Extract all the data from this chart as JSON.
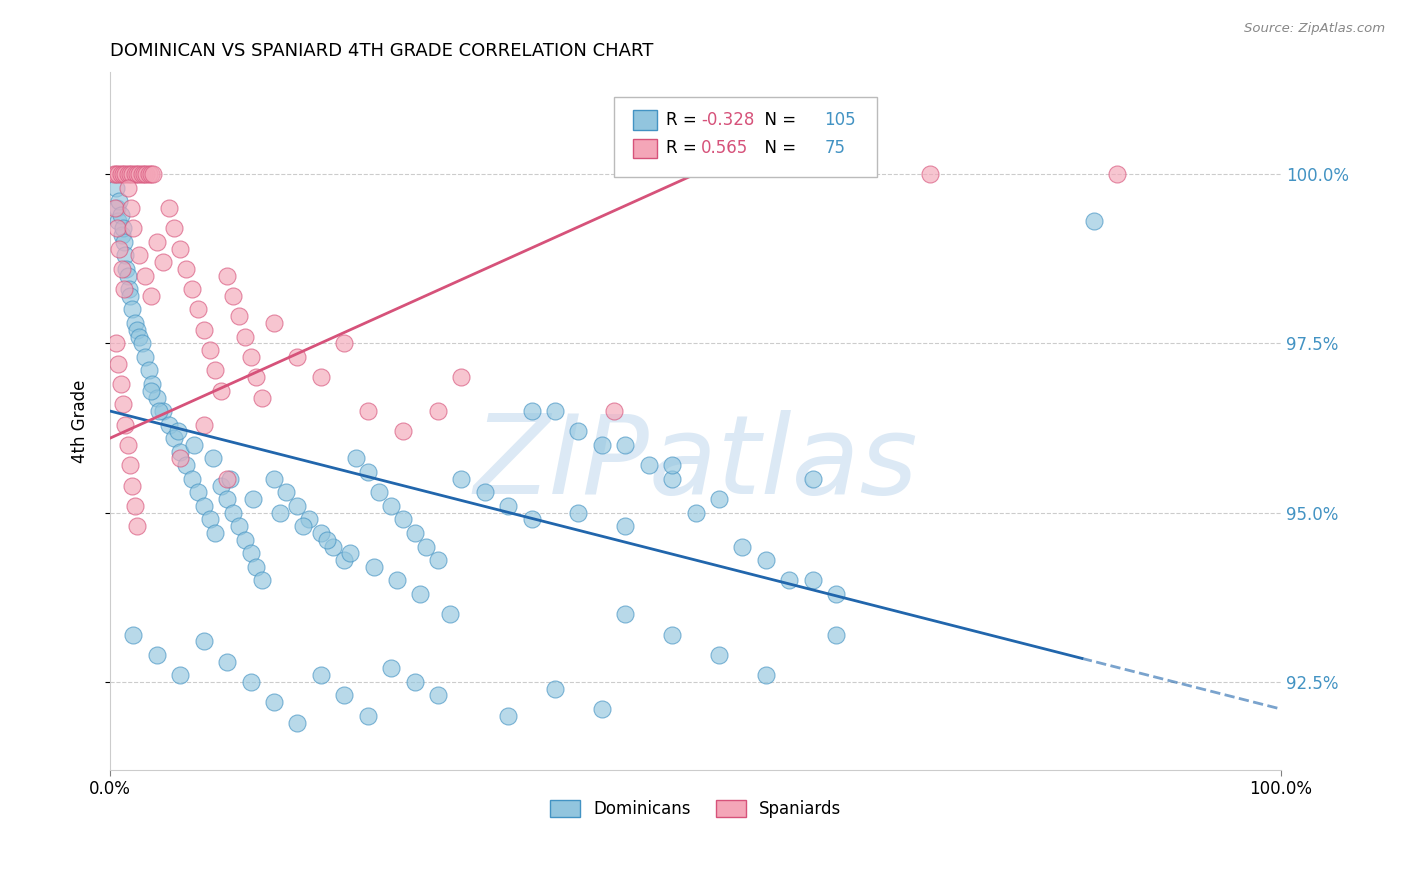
{
  "title": "DOMINICAN VS SPANIARD 4TH GRADE CORRELATION CHART",
  "source": "Source: ZipAtlas.com",
  "ylabel": "4th Grade",
  "xlim": [
    0,
    100
  ],
  "ylim": [
    91.2,
    101.5
  ],
  "yticks": [
    92.5,
    95.0,
    97.5,
    100.0
  ],
  "yticklabels": [
    "92.5%",
    "95.0%",
    "97.5%",
    "100.0%"
  ],
  "xticks": [
    0,
    100
  ],
  "xticklabels": [
    "0.0%",
    "100.0%"
  ],
  "blue_R": -0.328,
  "blue_N": 105,
  "pink_R": 0.565,
  "pink_N": 75,
  "blue_color": "#92c5de",
  "pink_color": "#f4a6b8",
  "blue_edge_color": "#4393c3",
  "pink_edge_color": "#d6527a",
  "blue_line_color": "#2166ac",
  "pink_line_color": "#d6527a",
  "tick_color": "#4393c3",
  "watermark_color": "#dce9f5",
  "legend_dominicans": "Dominicans",
  "legend_spaniards": "Spaniards",
  "blue_line_x0": 0,
  "blue_line_y0": 96.5,
  "blue_line_x1": 100,
  "blue_line_y1": 92.1,
  "blue_line_solid_end": 83,
  "pink_line_x0": 0,
  "pink_line_y0": 96.1,
  "pink_line_x1": 50,
  "pink_line_y1": 100.0,
  "blue_dots": [
    [
      0.5,
      99.8
    ],
    [
      0.6,
      99.5
    ],
    [
      0.7,
      99.3
    ],
    [
      0.8,
      99.6
    ],
    [
      0.9,
      99.4
    ],
    [
      1.0,
      99.1
    ],
    [
      1.1,
      99.2
    ],
    [
      1.2,
      99.0
    ],
    [
      1.3,
      98.8
    ],
    [
      1.4,
      98.6
    ],
    [
      1.5,
      98.5
    ],
    [
      1.6,
      98.3
    ],
    [
      1.7,
      98.2
    ],
    [
      1.9,
      98.0
    ],
    [
      2.1,
      97.8
    ],
    [
      2.3,
      97.7
    ],
    [
      2.5,
      97.6
    ],
    [
      2.7,
      97.5
    ],
    [
      3.0,
      97.3
    ],
    [
      3.3,
      97.1
    ],
    [
      3.6,
      96.9
    ],
    [
      4.0,
      96.7
    ],
    [
      4.5,
      96.5
    ],
    [
      5.0,
      96.3
    ],
    [
      5.5,
      96.1
    ],
    [
      6.0,
      95.9
    ],
    [
      6.5,
      95.7
    ],
    [
      7.0,
      95.5
    ],
    [
      7.5,
      95.3
    ],
    [
      8.0,
      95.1
    ],
    [
      8.5,
      94.9
    ],
    [
      9.0,
      94.7
    ],
    [
      9.5,
      95.4
    ],
    [
      10.0,
      95.2
    ],
    [
      10.5,
      95.0
    ],
    [
      11.0,
      94.8
    ],
    [
      11.5,
      94.6
    ],
    [
      12.0,
      94.4
    ],
    [
      12.5,
      94.2
    ],
    [
      13.0,
      94.0
    ],
    [
      14.0,
      95.5
    ],
    [
      15.0,
      95.3
    ],
    [
      16.0,
      95.1
    ],
    [
      17.0,
      94.9
    ],
    [
      18.0,
      94.7
    ],
    [
      19.0,
      94.5
    ],
    [
      20.0,
      94.3
    ],
    [
      21.0,
      95.8
    ],
    [
      22.0,
      95.6
    ],
    [
      23.0,
      95.3
    ],
    [
      24.0,
      95.1
    ],
    [
      25.0,
      94.9
    ],
    [
      26.0,
      94.7
    ],
    [
      27.0,
      94.5
    ],
    [
      28.0,
      94.3
    ],
    [
      30.0,
      95.5
    ],
    [
      32.0,
      95.3
    ],
    [
      34.0,
      95.1
    ],
    [
      36.0,
      94.9
    ],
    [
      38.0,
      96.5
    ],
    [
      40.0,
      95.0
    ],
    [
      42.0,
      96.0
    ],
    [
      44.0,
      94.8
    ],
    [
      46.0,
      95.7
    ],
    [
      48.0,
      95.5
    ],
    [
      50.0,
      95.0
    ],
    [
      52.0,
      95.2
    ],
    [
      54.0,
      94.5
    ],
    [
      56.0,
      94.3
    ],
    [
      58.0,
      94.0
    ],
    [
      60.0,
      95.5
    ],
    [
      62.0,
      93.8
    ],
    [
      3.5,
      96.8
    ],
    [
      4.2,
      96.5
    ],
    [
      5.8,
      96.2
    ],
    [
      7.2,
      96.0
    ],
    [
      8.8,
      95.8
    ],
    [
      10.2,
      95.5
    ],
    [
      12.2,
      95.2
    ],
    [
      14.5,
      95.0
    ],
    [
      16.5,
      94.8
    ],
    [
      18.5,
      94.6
    ],
    [
      20.5,
      94.4
    ],
    [
      22.5,
      94.2
    ],
    [
      24.5,
      94.0
    ],
    [
      26.5,
      93.8
    ],
    [
      29.0,
      93.5
    ],
    [
      2.0,
      93.2
    ],
    [
      4.0,
      92.9
    ],
    [
      6.0,
      92.6
    ],
    [
      8.0,
      93.1
    ],
    [
      10.0,
      92.8
    ],
    [
      12.0,
      92.5
    ],
    [
      14.0,
      92.2
    ],
    [
      16.0,
      91.9
    ],
    [
      18.0,
      92.6
    ],
    [
      20.0,
      92.3
    ],
    [
      22.0,
      92.0
    ],
    [
      24.0,
      92.7
    ],
    [
      26.0,
      92.5
    ],
    [
      28.0,
      92.3
    ],
    [
      34.0,
      92.0
    ],
    [
      38.0,
      92.4
    ],
    [
      42.0,
      92.1
    ],
    [
      44.0,
      93.5
    ],
    [
      48.0,
      93.2
    ],
    [
      52.0,
      92.9
    ],
    [
      56.0,
      92.6
    ],
    [
      60.0,
      94.0
    ],
    [
      62.0,
      93.2
    ],
    [
      36.0,
      96.5
    ],
    [
      40.0,
      96.2
    ],
    [
      44.0,
      96.0
    ],
    [
      48.0,
      95.7
    ],
    [
      84.0,
      99.3
    ]
  ],
  "pink_dots": [
    [
      0.3,
      100.0
    ],
    [
      0.5,
      100.0
    ],
    [
      0.7,
      100.0
    ],
    [
      0.9,
      100.0
    ],
    [
      1.1,
      100.0
    ],
    [
      1.3,
      100.0
    ],
    [
      1.5,
      100.0
    ],
    [
      1.7,
      100.0
    ],
    [
      1.9,
      100.0
    ],
    [
      2.1,
      100.0
    ],
    [
      2.3,
      100.0
    ],
    [
      2.5,
      100.0
    ],
    [
      2.7,
      100.0
    ],
    [
      2.9,
      100.0
    ],
    [
      3.1,
      100.0
    ],
    [
      3.3,
      100.0
    ],
    [
      3.5,
      100.0
    ],
    [
      3.7,
      100.0
    ],
    [
      0.4,
      99.5
    ],
    [
      0.6,
      99.2
    ],
    [
      0.8,
      98.9
    ],
    [
      1.0,
      98.6
    ],
    [
      1.2,
      98.3
    ],
    [
      1.5,
      99.8
    ],
    [
      1.8,
      99.5
    ],
    [
      2.0,
      99.2
    ],
    [
      2.5,
      98.8
    ],
    [
      3.0,
      98.5
    ],
    [
      3.5,
      98.2
    ],
    [
      4.0,
      99.0
    ],
    [
      4.5,
      98.7
    ],
    [
      5.0,
      99.5
    ],
    [
      5.5,
      99.2
    ],
    [
      6.0,
      98.9
    ],
    [
      6.5,
      98.6
    ],
    [
      7.0,
      98.3
    ],
    [
      7.5,
      98.0
    ],
    [
      8.0,
      97.7
    ],
    [
      8.5,
      97.4
    ],
    [
      9.0,
      97.1
    ],
    [
      9.5,
      96.8
    ],
    [
      10.0,
      98.5
    ],
    [
      10.5,
      98.2
    ],
    [
      11.0,
      97.9
    ],
    [
      11.5,
      97.6
    ],
    [
      12.0,
      97.3
    ],
    [
      12.5,
      97.0
    ],
    [
      13.0,
      96.7
    ],
    [
      0.5,
      97.5
    ],
    [
      0.7,
      97.2
    ],
    [
      0.9,
      96.9
    ],
    [
      1.1,
      96.6
    ],
    [
      1.3,
      96.3
    ],
    [
      1.5,
      96.0
    ],
    [
      1.7,
      95.7
    ],
    [
      1.9,
      95.4
    ],
    [
      2.1,
      95.1
    ],
    [
      2.3,
      94.8
    ],
    [
      14.0,
      97.8
    ],
    [
      16.0,
      97.3
    ],
    [
      18.0,
      97.0
    ],
    [
      20.0,
      97.5
    ],
    [
      22.0,
      96.5
    ],
    [
      25.0,
      96.2
    ],
    [
      28.0,
      96.5
    ],
    [
      30.0,
      97.0
    ],
    [
      6.0,
      95.8
    ],
    [
      8.0,
      96.3
    ],
    [
      10.0,
      95.5
    ],
    [
      86.0,
      100.0
    ],
    [
      70.0,
      100.0
    ],
    [
      43.0,
      96.5
    ]
  ]
}
